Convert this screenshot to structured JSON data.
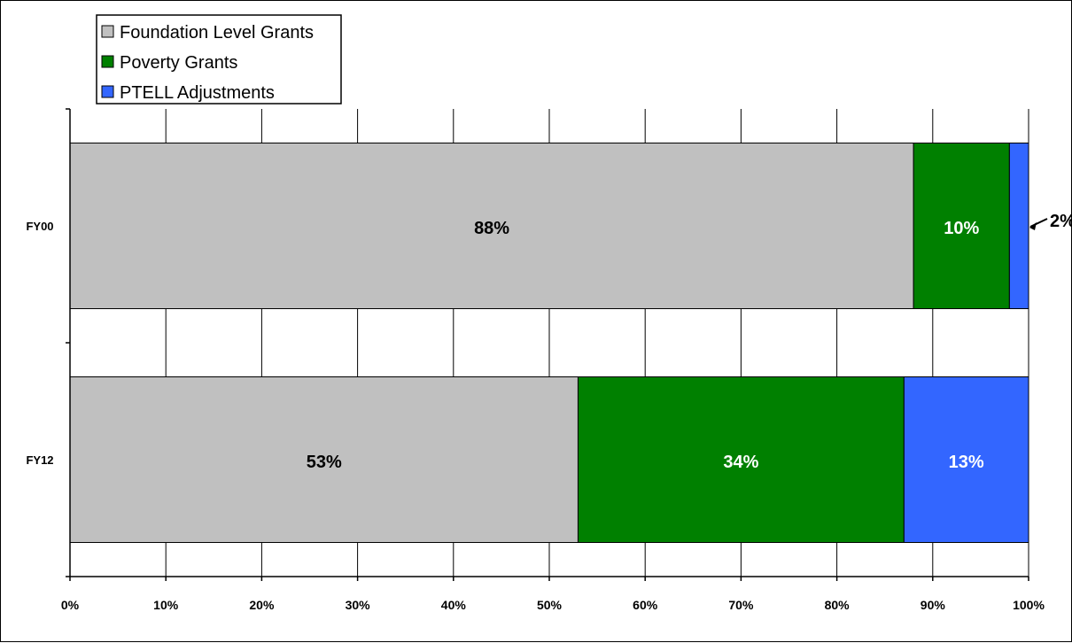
{
  "chart_data": {
    "type": "bar",
    "orientation": "horizontal",
    "stacked": "percent",
    "categories": [
      "FY00",
      "FY12"
    ],
    "series": [
      {
        "name": "Foundation Level Grants",
        "values": [
          88,
          53
        ],
        "labels": [
          "88%",
          "53%"
        ],
        "color": "#c0c0c0",
        "label_color": "#000000"
      },
      {
        "name": "Poverty Grants",
        "values": [
          10,
          34
        ],
        "labels": [
          "10%",
          "34%"
        ],
        "color": "#008000",
        "label_color": "#ffffff"
      },
      {
        "name": "PTELL Adjustments",
        "values": [
          2,
          13
        ],
        "labels": [
          "2%",
          "13%"
        ],
        "color": "#3366ff",
        "label_color": "#ffffff"
      }
    ],
    "xlim": [
      0,
      100
    ],
    "xticks": [
      "0%",
      "10%",
      "20%",
      "30%",
      "40%",
      "50%",
      "60%",
      "70%",
      "80%",
      "90%",
      "100%"
    ],
    "grid": "vertical",
    "legend_position": "top-left"
  }
}
